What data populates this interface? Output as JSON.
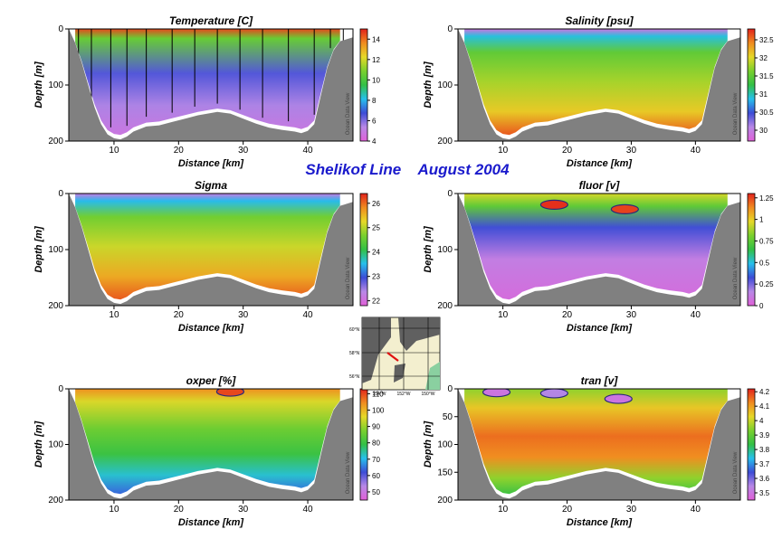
{
  "figure": {
    "title": "Shelikof Line    August 2004",
    "watermark": "Ocean Data View",
    "map_labels": {
      "lat_top": "60°N",
      "lat_mid": "58°N",
      "lat_bottom": "56°N",
      "lon_left": "154°W",
      "lon_mid": "152°W",
      "lon_right": "150°W"
    }
  },
  "chart_data": [
    {
      "type": "heatmap",
      "title": "Temperature [C]",
      "xlabel": "Distance [km]",
      "ylabel": "Depth [m]",
      "xlim": [
        3,
        47
      ],
      "ylim": [
        200,
        0
      ],
      "xticks": [
        "10",
        "20",
        "30",
        "40"
      ],
      "xtick_values": [
        10,
        20,
        30,
        40
      ],
      "yticks": [
        "0",
        "100",
        "200"
      ],
      "ytick_values": [
        0,
        100,
        200
      ],
      "colorbar": {
        "ticks": [
          "4",
          "6",
          "8",
          "10",
          "12",
          "14"
        ],
        "tick_values": [
          4,
          6,
          8,
          10,
          12,
          14
        ],
        "range": [
          4,
          15
        ]
      },
      "colorscale": [
        "#e060d8",
        "#b888e6",
        "#3d4cd6",
        "#27c0ec",
        "#33c046",
        "#7ad02e",
        "#e6d828",
        "#f08b20",
        "#e2221c"
      ],
      "station_lines": [
        4.5,
        6.5,
        9.5,
        12,
        15,
        19,
        22.5,
        26,
        29.5,
        33,
        37,
        41,
        43.5,
        45.5
      ],
      "field": {
        "surface": 14.5,
        "thermocline": 10.5,
        "cold_core": 6.5,
        "deep": 5.5,
        "bottom": 4.8
      }
    },
    {
      "type": "heatmap",
      "title": "Salinity [psu]",
      "xlabel": "Distance [km]",
      "ylabel": "Depth [m]",
      "xlim": [
        3,
        47
      ],
      "ylim": [
        200,
        0
      ],
      "xticks": [
        "10",
        "20",
        "30",
        "40"
      ],
      "xtick_values": [
        10,
        20,
        30,
        40
      ],
      "yticks": [
        "0",
        "100",
        "200"
      ],
      "ytick_values": [
        0,
        100,
        200
      ],
      "colorbar": {
        "ticks": [
          "30",
          "30.5",
          "31",
          "31.5",
          "32",
          "32.5"
        ],
        "tick_values": [
          30,
          30.5,
          31,
          31.5,
          32,
          32.5
        ],
        "range": [
          29.7,
          32.8
        ]
      },
      "colorscale": [
        "#e060d8",
        "#b888e6",
        "#3d4cd6",
        "#27c0ec",
        "#33c046",
        "#7ad02e",
        "#e6d828",
        "#f08b20",
        "#e2221c"
      ],
      "field": {
        "surface": 29.9,
        "near_surface": 30.9,
        "thermocline": 31.5,
        "cold_core": 31.8,
        "deep": 32.1,
        "bottom": 32.6
      }
    },
    {
      "type": "heatmap",
      "title": "Sigma",
      "xlabel": "Distance [km]",
      "ylabel": "Depth [m]",
      "xlim": [
        3,
        47
      ],
      "ylim": [
        200,
        0
      ],
      "xticks": [
        "10",
        "20",
        "30",
        "40"
      ],
      "xtick_values": [
        10,
        20,
        30,
        40
      ],
      "yticks": [
        "0",
        "100",
        "200"
      ],
      "ytick_values": [
        0,
        100,
        200
      ],
      "colorbar": {
        "ticks": [
          "22",
          "23",
          "24",
          "25",
          "26"
        ],
        "tick_values": [
          22,
          23,
          24,
          25,
          26
        ],
        "range": [
          21.8,
          26.4
        ]
      },
      "colorscale": [
        "#e060d8",
        "#b888e6",
        "#3d4cd6",
        "#27c0ec",
        "#33c046",
        "#7ad02e",
        "#e6d828",
        "#f08b20",
        "#e2221c"
      ],
      "field": {
        "surface": 22.2,
        "near_surface": 23.5,
        "thermocline": 24.6,
        "cold_core": 25.1,
        "deep": 25.6,
        "bottom": 26.1
      }
    },
    {
      "type": "heatmap",
      "title": "fluor [v]",
      "xlabel": "Distance [km]",
      "ylabel": "Depth [m]",
      "xlim": [
        3,
        47
      ],
      "ylim": [
        200,
        0
      ],
      "xticks": [
        "10",
        "20",
        "30",
        "40"
      ],
      "xtick_values": [
        10,
        20,
        30,
        40
      ],
      "yticks": [
        "0",
        "100",
        "200"
      ],
      "ytick_values": [
        0,
        100,
        200
      ],
      "colorbar": {
        "ticks": [
          "0",
          "0.25",
          "0.5",
          "0.75",
          "1",
          "1.25"
        ],
        "tick_values": [
          0,
          0.25,
          0.5,
          0.75,
          1,
          1.25
        ],
        "range": [
          0,
          1.3
        ]
      },
      "colorscale": [
        "#e060d8",
        "#b888e6",
        "#3d4cd6",
        "#27c0ec",
        "#33c046",
        "#7ad02e",
        "#e6d828",
        "#f08b20",
        "#e2221c"
      ],
      "field": {
        "surface": 0.95,
        "chl_layer": 0.75,
        "below_layer": 0.32,
        "deep": 0.12,
        "bottom": 0.05
      },
      "maxima": [
        {
          "x": 18,
          "depth": 20,
          "value": 1.28
        },
        {
          "x": 29,
          "depth": 28,
          "value": 1.25
        }
      ]
    },
    {
      "type": "heatmap",
      "title": "oxper [%]",
      "xlabel": "Distance [km]",
      "ylabel": "Depth [m]",
      "xlim": [
        3,
        47
      ],
      "ylim": [
        200,
        0
      ],
      "xticks": [
        "10",
        "20",
        "30",
        "40"
      ],
      "xtick_values": [
        10,
        20,
        30,
        40
      ],
      "yticks": [
        "0",
        "100",
        "200"
      ],
      "ytick_values": [
        0,
        100,
        200
      ],
      "colorbar": {
        "ticks": [
          "50",
          "60",
          "70",
          "80",
          "90",
          "100",
          "110"
        ],
        "tick_values": [
          50,
          60,
          70,
          80,
          90,
          100,
          110
        ],
        "range": [
          45,
          113
        ]
      },
      "colorscale": [
        "#e060d8",
        "#b888e6",
        "#3d4cd6",
        "#27c0ec",
        "#33c046",
        "#7ad02e",
        "#e6d828",
        "#f08b20",
        "#e2221c"
      ],
      "field": {
        "surface": 104,
        "near_surface": 95,
        "mid": 86,
        "deep": 80,
        "lower": 72,
        "bottom": 64
      },
      "maxima": [
        {
          "x": 28,
          "depth": 5,
          "value": 110
        }
      ]
    },
    {
      "type": "heatmap",
      "title": "tran [v]",
      "xlabel": "Distance [km]",
      "ylabel": "Depth [m]",
      "xlim": [
        3,
        47
      ],
      "ylim": [
        200,
        0
      ],
      "xticks": [
        "10",
        "20",
        "30",
        "40"
      ],
      "xtick_values": [
        10,
        20,
        30,
        40
      ],
      "yticks": [
        "0",
        "50",
        "100",
        "150",
        "200"
      ],
      "ytick_values": [
        0,
        50,
        100,
        150,
        200
      ],
      "colorbar": {
        "ticks": [
          "3.5",
          "3.6",
          "3.7",
          "3.8",
          "3.9",
          "4",
          "4.1",
          "4.2"
        ],
        "tick_values": [
          3.5,
          3.6,
          3.7,
          3.8,
          3.9,
          4,
          4.1,
          4.2
        ],
        "range": [
          3.45,
          4.22
        ]
      },
      "colorscale": [
        "#e060d8",
        "#b888e6",
        "#3d4cd6",
        "#27c0ec",
        "#33c046",
        "#7ad02e",
        "#e6d828",
        "#f08b20",
        "#e2221c"
      ],
      "field": {
        "surface": 3.95,
        "near_surface": 4.05,
        "mid": 4.15,
        "deep": 4.12,
        "lower": 3.95,
        "bottom": 3.85
      },
      "minima": [
        {
          "x": 9,
          "depth": 6,
          "value": 3.5
        },
        {
          "x": 18,
          "depth": 8,
          "value": 3.55
        },
        {
          "x": 28,
          "depth": 18,
          "value": 3.5
        }
      ]
    }
  ]
}
